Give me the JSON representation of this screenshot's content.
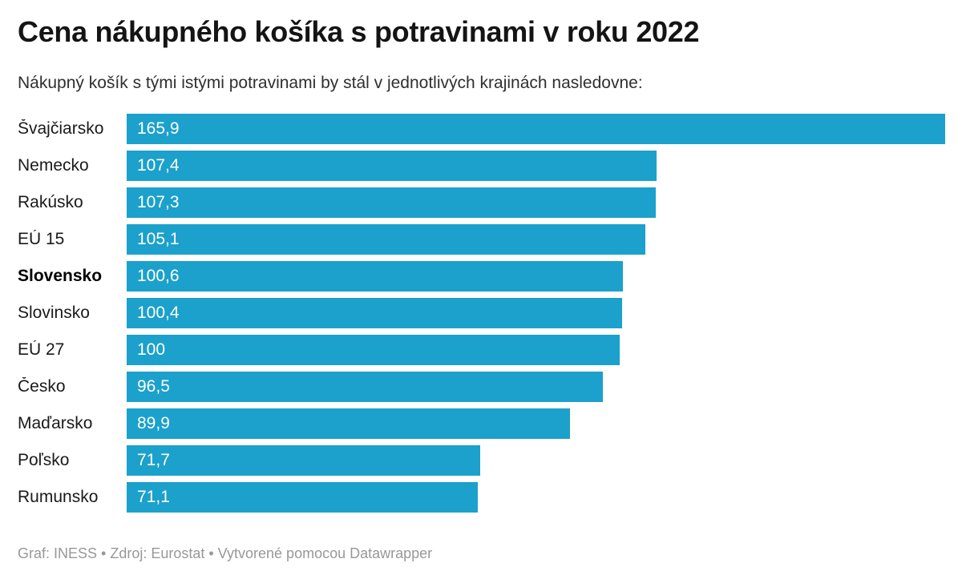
{
  "chart_data": {
    "type": "bar",
    "orientation": "horizontal",
    "title": "Cena nákupného košíka s potravinami v roku 2022",
    "subtitle": "Nákupný košík s tými istými potravinami by stál v jednotlivých krajinách nasledovne:",
    "categories": [
      "Švajčiarsko",
      "Nemecko",
      "Rakúsko",
      "EÚ 15",
      "Slovensko",
      "Slovinsko",
      "EÚ 27",
      "Česko",
      "Maďarsko",
      "Poľsko",
      "Rumunsko"
    ],
    "values": [
      165.9,
      107.4,
      107.3,
      105.1,
      100.6,
      100.4,
      100,
      96.5,
      89.9,
      71.7,
      71.1
    ],
    "value_labels": [
      "165,9",
      "107,4",
      "107,3",
      "105,1",
      "100,6",
      "100,4",
      "100",
      "96,5",
      "89,9",
      "71,7",
      "71,1"
    ],
    "emphasized_category": "Slovensko",
    "xlim": [
      0,
      165.9
    ],
    "grid": false,
    "legend": "none",
    "bar_color": "#1BA1CB",
    "value_label_color": "#FFFFFF",
    "footer": "Graf: INESS • Zdroj: Eurostat • Vytvorené pomocou Datawrapper"
  }
}
